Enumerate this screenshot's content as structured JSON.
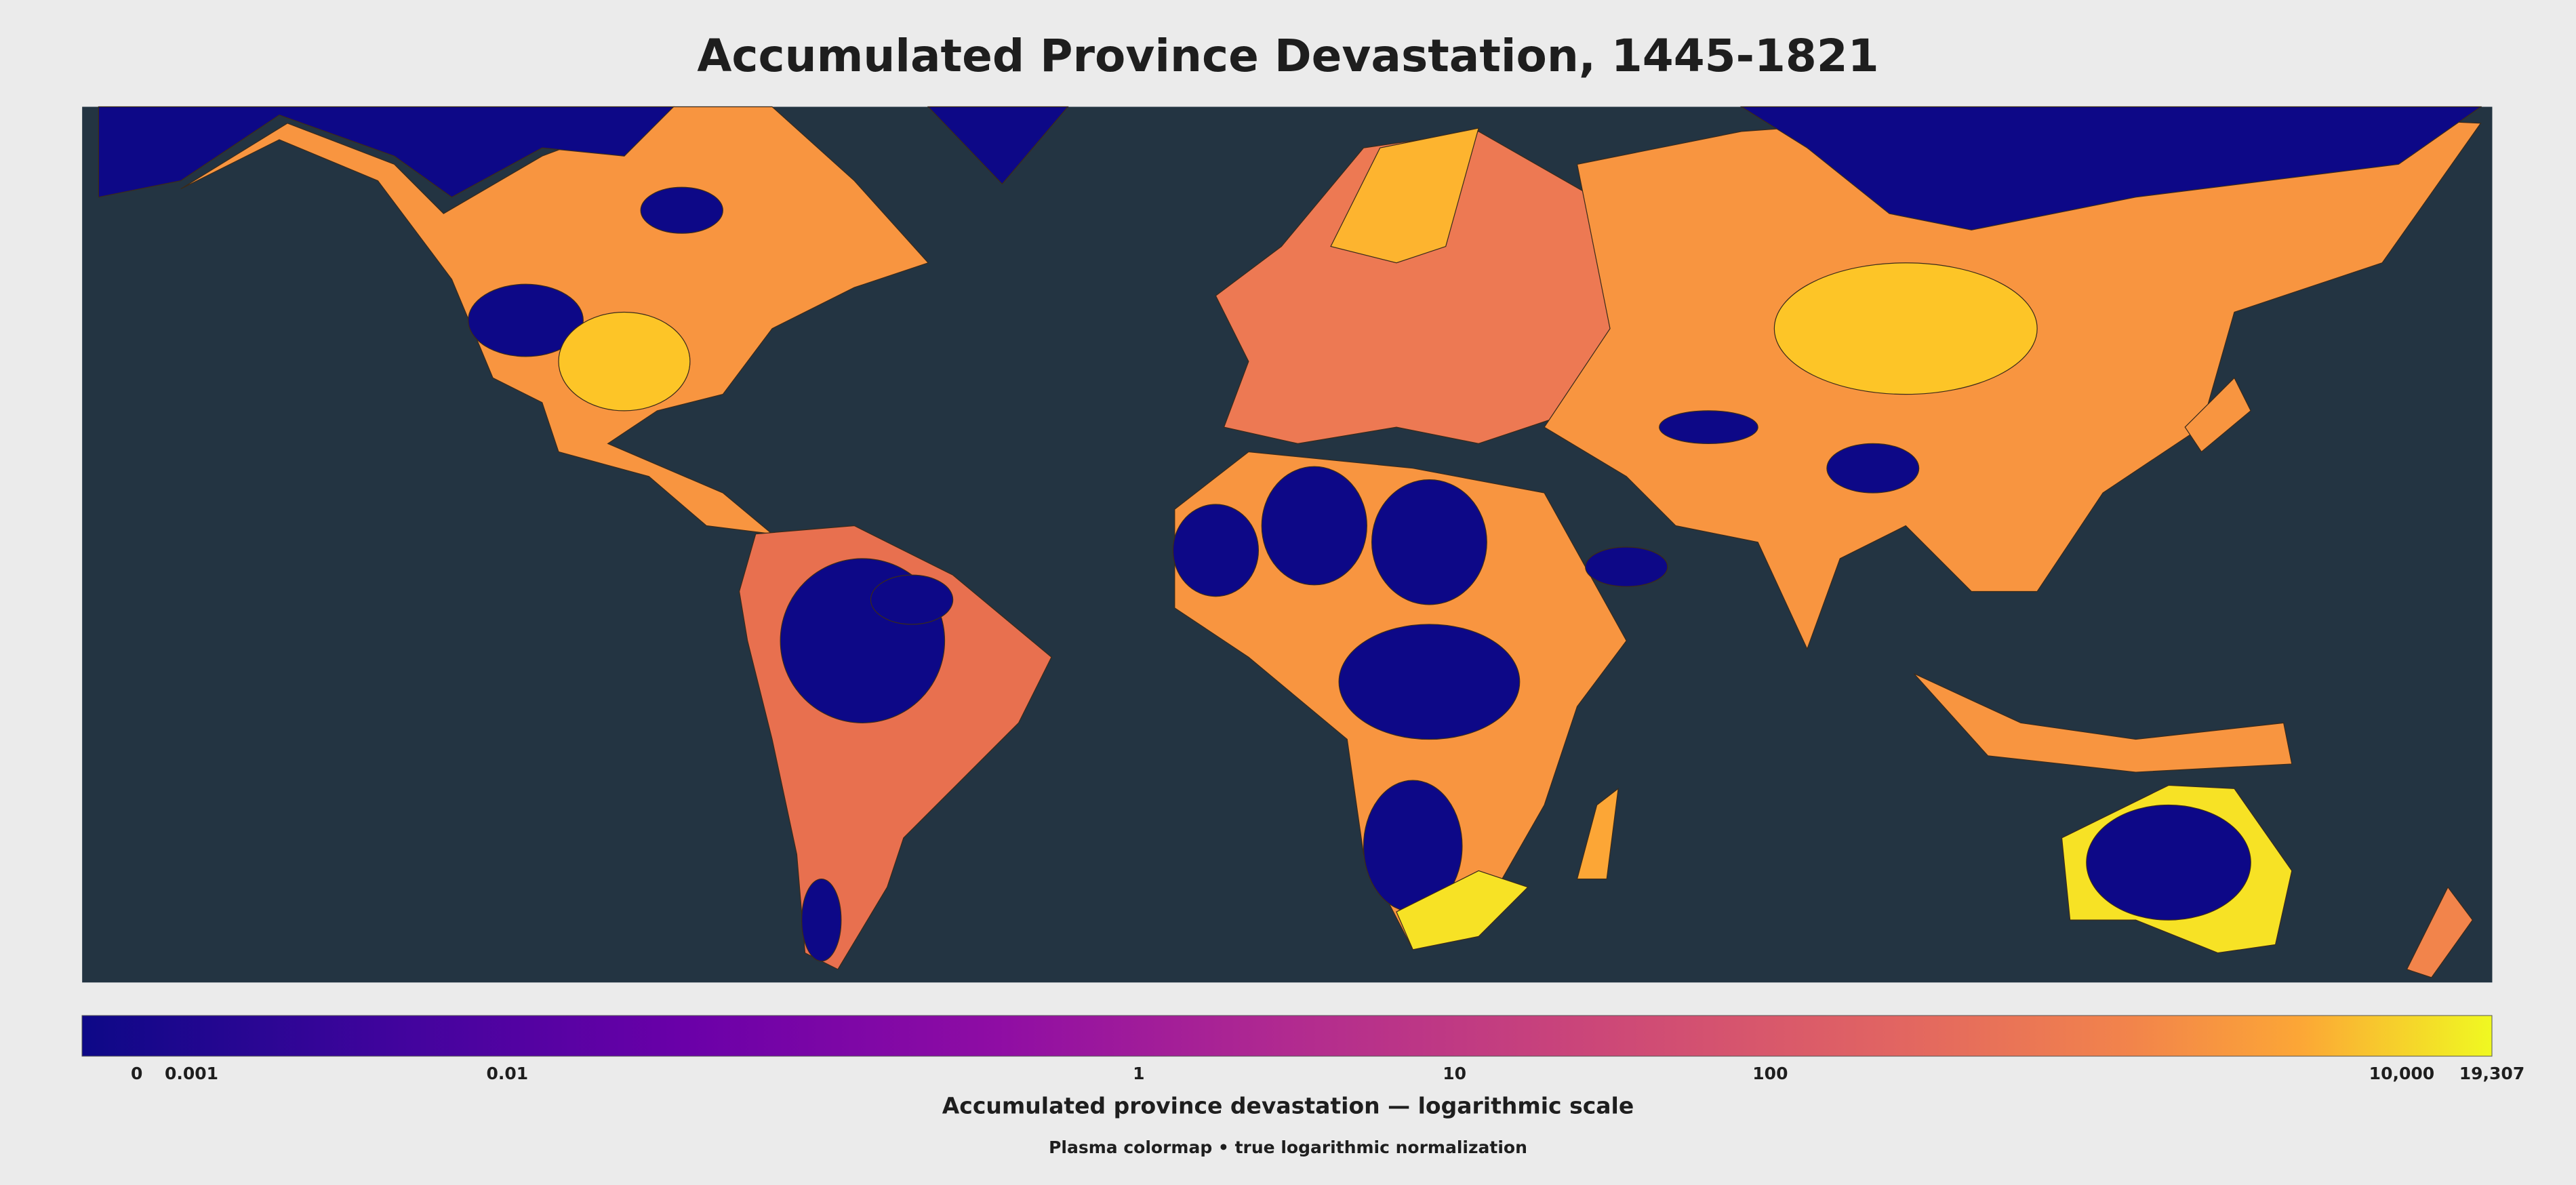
{
  "title": "Accumulated Province Devastation, 1445-1821",
  "colorbar": {
    "label": "Accumulated province devastation — logarithmic scale",
    "subtitle": "Plasma colormap • true logarithmic normalization",
    "scale": "log",
    "xlim": [
      0.00045,
      19307
    ],
    "xticks": [
      0,
      0.001,
      0.01,
      1,
      10,
      100,
      {
        "value": 10000,
        "label": "10,000"
      },
      {
        "value": 19307,
        "label": "19,307"
      }
    ]
  }
}
